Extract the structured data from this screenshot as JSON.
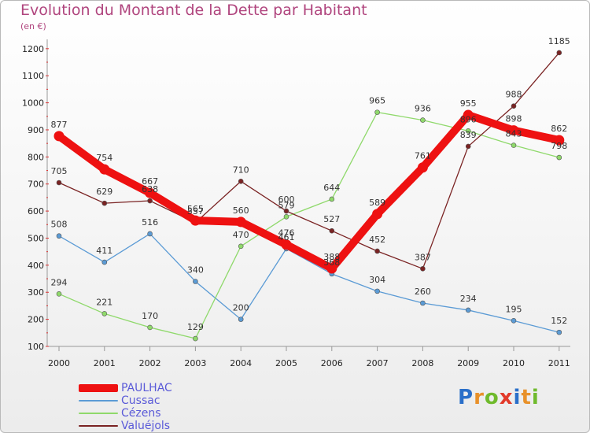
{
  "title": "Evolution du Montant de la Dette par Habitant",
  "subtitle": "(en €)",
  "logo": {
    "letters": [
      {
        "ch": "P",
        "color": "#2a6fc9"
      },
      {
        "ch": "r",
        "color": "#e8912a"
      },
      {
        "ch": "o",
        "color": "#6fba2c"
      },
      {
        "ch": "x",
        "color": "#e23a2a"
      },
      {
        "ch": "i",
        "color": "#2a6fc9"
      },
      {
        "ch": "t",
        "color": "#e8912a"
      },
      {
        "ch": "i",
        "color": "#6fba2c"
      }
    ]
  },
  "chart_data": {
    "type": "line",
    "title": "Evolution du Montant de la Dette par Habitant",
    "subtitle": "(en €)",
    "xlabel": "",
    "ylabel": "",
    "x": [
      "2000",
      "2001",
      "2002",
      "2003",
      "2004",
      "2005",
      "2006",
      "2007",
      "2008",
      "2009",
      "2010",
      "2011"
    ],
    "ylim": [
      100,
      1200
    ],
    "yticks": [
      100,
      200,
      300,
      400,
      500,
      600,
      700,
      800,
      900,
      1000,
      1100,
      1200
    ],
    "grid": false,
    "legend_position": "bottom-left",
    "series": [
      {
        "name": "Cussac",
        "color": "#5b9bd5",
        "values": [
          508,
          411,
          516,
          340,
          200,
          461,
          368,
          304,
          260,
          234,
          195,
          152
        ]
      },
      {
        "name": "Cézens",
        "color": "#8fd96b",
        "values": [
          294,
          221,
          170,
          129,
          470,
          579,
          644,
          965,
          936,
          896,
          843,
          798
        ]
      },
      {
        "name": "Valuéjols",
        "color": "#7a2323",
        "values": [
          705,
          629,
          638,
          557,
          710,
          600,
          527,
          452,
          387,
          839,
          988,
          1185
        ]
      },
      {
        "name": "PAULHAC",
        "color": "#ee1111",
        "values": [
          877,
          754,
          667,
          565,
          560,
          476,
          388,
          589,
          761,
          955,
          898,
          862
        ]
      }
    ]
  }
}
